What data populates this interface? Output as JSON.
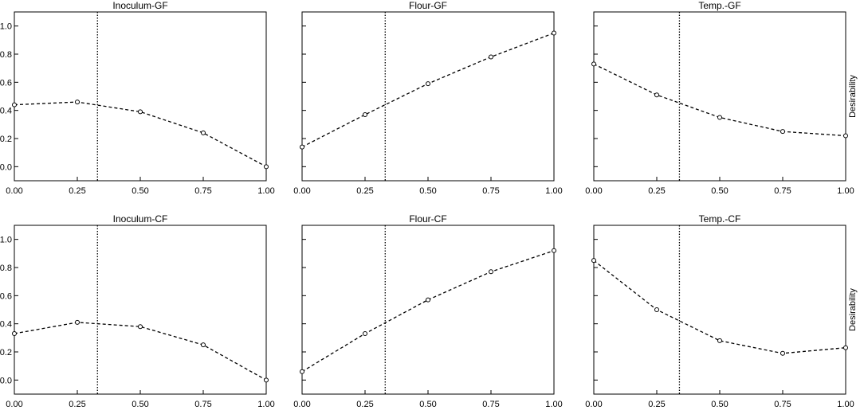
{
  "chart_data": {
    "type": "line",
    "ylabel": "Desirability",
    "xlim": [
      0,
      1
    ],
    "ylim": [
      -0.1,
      1.1
    ],
    "xticks": [
      "0.00",
      "0.25",
      "0.50",
      "0.75",
      "1.00"
    ],
    "yticks": [
      "0.0",
      "0.2",
      "0.4",
      "0.6",
      "0.8",
      "1.0"
    ],
    "marker_x": [
      0,
      0.25,
      0.5,
      0.75,
      1.0
    ],
    "grid": false,
    "line_style": "dashed",
    "reference_line_style": "dotted",
    "colors": {
      "line": "#000000",
      "frame": "#000000",
      "background": "#ffffff"
    },
    "panels": [
      {
        "title": "Inoculum-GF",
        "values": [
          0.44,
          0.46,
          0.39,
          0.24,
          0.0
        ],
        "reference_x": 0.33
      },
      {
        "title": "Flour-GF",
        "values": [
          0.14,
          0.37,
          0.59,
          0.78,
          0.95
        ],
        "reference_x": 0.33
      },
      {
        "title": "Temp.-GF",
        "values": [
          0.73,
          0.51,
          0.35,
          0.25,
          0.22
        ],
        "reference_x": 0.34
      },
      {
        "title": "Inoculum-CF",
        "values": [
          0.33,
          0.41,
          0.38,
          0.25,
          0.0
        ],
        "reference_x": 0.33
      },
      {
        "title": "Flour-CF",
        "values": [
          0.06,
          0.33,
          0.57,
          0.77,
          0.92
        ],
        "reference_x": 0.33
      },
      {
        "title": "Temp.-CF",
        "values": [
          0.85,
          0.5,
          0.28,
          0.19,
          0.23
        ],
        "reference_x": 0.34
      }
    ]
  }
}
